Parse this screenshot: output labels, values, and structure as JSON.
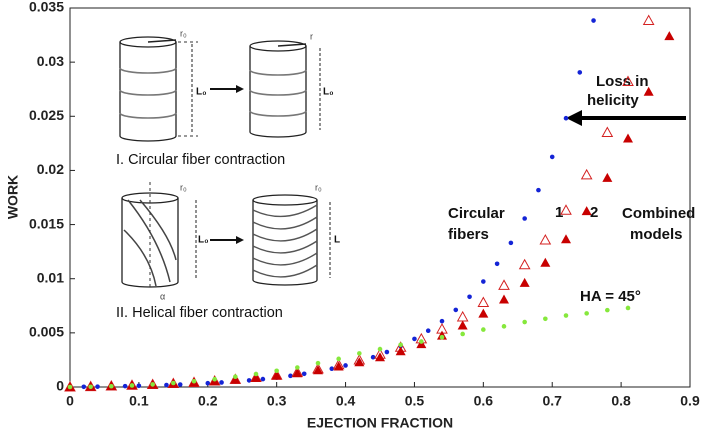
{
  "chart_data": {
    "type": "scatter",
    "xlabel": "EJECTION FRACTION",
    "ylabel": "WORK",
    "xlim": [
      0,
      0.9
    ],
    "ylim": [
      0,
      0.035
    ],
    "xticks": [
      0,
      0.1,
      0.2,
      0.3,
      0.4,
      0.5,
      0.6,
      0.7,
      0.8,
      0.9
    ],
    "yticks": [
      0,
      0.005,
      0.01,
      0.015,
      0.02,
      0.025,
      0.03,
      0.035
    ],
    "series": [
      {
        "color": "#1424d6",
        "marker": "circle",
        "x": [
          0,
          0.02,
          0.04,
          0.06,
          0.08,
          0.1,
          0.12,
          0.14,
          0.16,
          0.18,
          0.2,
          0.22,
          0.24,
          0.26,
          0.28,
          0.3,
          0.32,
          0.34,
          0.36,
          0.38,
          0.4,
          0.42,
          0.44,
          0.46,
          0.48,
          0.5,
          0.52,
          0.54,
          0.56,
          0.58,
          0.6,
          0.62,
          0.64,
          0.66,
          0.68,
          0.7,
          0.72,
          0.74,
          0.76
        ],
        "values": [
          0,
          2e-05,
          3e-05,
          6e-05,
          8e-05,
          0.00011,
          0.00014,
          0.00018,
          0.00023,
          0.00029,
          0.00035,
          0.00042,
          0.00051,
          0.00061,
          0.00073,
          0.00087,
          0.00103,
          0.00122,
          0.00144,
          0.00169,
          0.00199,
          0.00234,
          0.00275,
          0.00323,
          0.00379,
          0.00444,
          0.0052,
          0.00608,
          0.00712,
          0.00833,
          0.00974,
          0.01138,
          0.01331,
          0.01556,
          0.01818,
          0.02125,
          0.02482,
          0.02905,
          0.03384
        ]
      },
      {
        "name": "1",
        "color": "#d42020",
        "marker": "triangle-open",
        "x": [
          0,
          0.03,
          0.06,
          0.09,
          0.12,
          0.15,
          0.18,
          0.21,
          0.24,
          0.27,
          0.3,
          0.33,
          0.36,
          0.39,
          0.42,
          0.45,
          0.48,
          0.51,
          0.54,
          0.57,
          0.6,
          0.63,
          0.66,
          0.69,
          0.72,
          0.75,
          0.78,
          0.81,
          0.84
        ],
        "values": [
          0,
          4e-05,
          9e-05,
          0.00016,
          0.00023,
          0.00032,
          0.00042,
          0.00055,
          0.0007,
          0.00088,
          0.0011,
          0.00136,
          0.00167,
          0.00205,
          0.00249,
          0.00303,
          0.00367,
          0.00444,
          0.00535,
          0.00647,
          0.0078,
          0.00939,
          0.01129,
          0.01357,
          0.01632,
          0.01959,
          0.0235,
          0.02821,
          0.03384
        ]
      },
      {
        "name": "2",
        "color": "#c80000",
        "marker": "triangle",
        "x": [
          0,
          0.03,
          0.06,
          0.09,
          0.12,
          0.15,
          0.18,
          0.21,
          0.24,
          0.27,
          0.3,
          0.33,
          0.36,
          0.39,
          0.42,
          0.45,
          0.48,
          0.51,
          0.54,
          0.57,
          0.6,
          0.63,
          0.66,
          0.69,
          0.72,
          0.75,
          0.78,
          0.81,
          0.84,
          0.87
        ],
        "values": [
          0,
          4e-05,
          9e-05,
          0.00015,
          0.00022,
          0.00031,
          0.00041,
          0.00053,
          0.00067,
          0.00084,
          0.00104,
          0.00127,
          0.00155,
          0.00189,
          0.00228,
          0.00275,
          0.0033,
          0.00396,
          0.00474,
          0.00568,
          0.00678,
          0.00808,
          0.00962,
          0.01147,
          0.01365,
          0.01624,
          0.01931,
          0.02295,
          0.02727,
          0.0324
        ]
      },
      {
        "name": "HA = 45°",
        "color": "#86e83c",
        "marker": "circle",
        "x": [
          0,
          0.03,
          0.06,
          0.09,
          0.12,
          0.15,
          0.18,
          0.21,
          0.24,
          0.27,
          0.3,
          0.33,
          0.36,
          0.39,
          0.42,
          0.45,
          0.48,
          0.51,
          0.54,
          0.57,
          0.6,
          0.63,
          0.66,
          0.69,
          0.72,
          0.75,
          0.78,
          0.81
        ],
        "values": [
          0,
          2e-05,
          7e-05,
          0.00014,
          0.00024,
          0.00037,
          0.00053,
          0.00072,
          0.00095,
          0.0012,
          0.0015,
          0.0018,
          0.0022,
          0.0026,
          0.0031,
          0.0035,
          0.0039,
          0.0042,
          0.0046,
          0.0049,
          0.0053,
          0.0056,
          0.006,
          0.0063,
          0.0066,
          0.0068,
          0.0071,
          0.0073
        ]
      }
    ],
    "annotations": [
      "Circular",
      "fibers",
      "Combined",
      "models",
      "Loss in",
      "helicity"
    ],
    "inset": {
      "circular_caption": "I. Circular fiber contraction",
      "helical_caption": "II. Helical fiber contraction",
      "r0": "r₀",
      "r": "r",
      "L0": "L₀",
      "L": "L",
      "alpha": "α"
    }
  }
}
